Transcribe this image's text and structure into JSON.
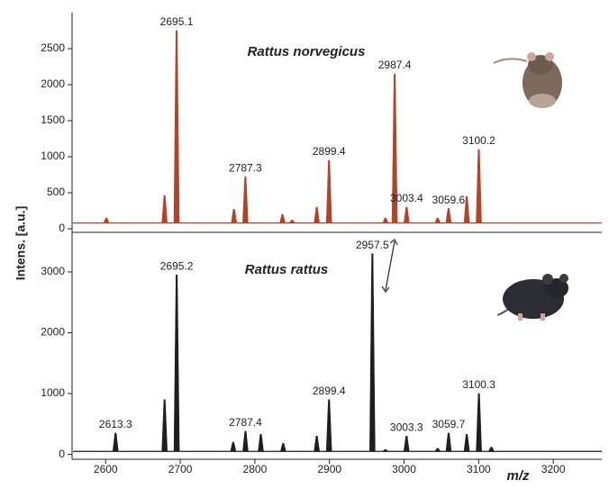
{
  "chart_data": {
    "type": "spectrum",
    "xlabel": "m/z",
    "ylabel": "Intens. [a.u.]",
    "xlim": [
      2555,
      3265
    ],
    "xticks": [
      2600,
      2700,
      2800,
      2900,
      3000,
      3100,
      3200
    ],
    "panels": [
      {
        "title": "Rattus norvegicus",
        "color": "#b0452b",
        "ylim": [
          -50,
          3000
        ],
        "yticks": [
          0,
          500,
          1000,
          1500,
          2000,
          2500
        ],
        "baseline": 80,
        "peaks": {
          "x": [
            2695.1,
            2787.3,
            2899.4,
            2987.4,
            3003.4,
            3059.6,
            3100.2
          ],
          "values": [
            2750,
            720,
            950,
            2150,
            300,
            280,
            1100
          ]
        },
        "minor_peaks": {
          "x": [
            2601,
            2679,
            2772,
            2837,
            2850,
            2883,
            2975,
            3045,
            3084
          ],
          "values": [
            150,
            460,
            270,
            200,
            120,
            300,
            150,
            150,
            450
          ]
        }
      },
      {
        "title": "Rattus rattus",
        "color": "#1e1e1e",
        "ylim": [
          -80,
          3650
        ],
        "yticks": [
          0,
          1000,
          2000,
          3000
        ],
        "baseline": 50,
        "peaks": {
          "x": [
            2613.3,
            2695.2,
            2787.4,
            2899.4,
            2957.5,
            3003.3,
            3059.7,
            3100.3
          ],
          "values": [
            350,
            2950,
            380,
            900,
            3300,
            300,
            350,
            1000
          ]
        },
        "minor_peaks": {
          "x": [
            2679,
            2771,
            2808,
            2838,
            2883,
            2975,
            3045,
            3084,
            3117
          ],
          "values": [
            900,
            200,
            330,
            180,
            300,
            80,
            100,
            330,
            120
          ]
        }
      }
    ]
  }
}
